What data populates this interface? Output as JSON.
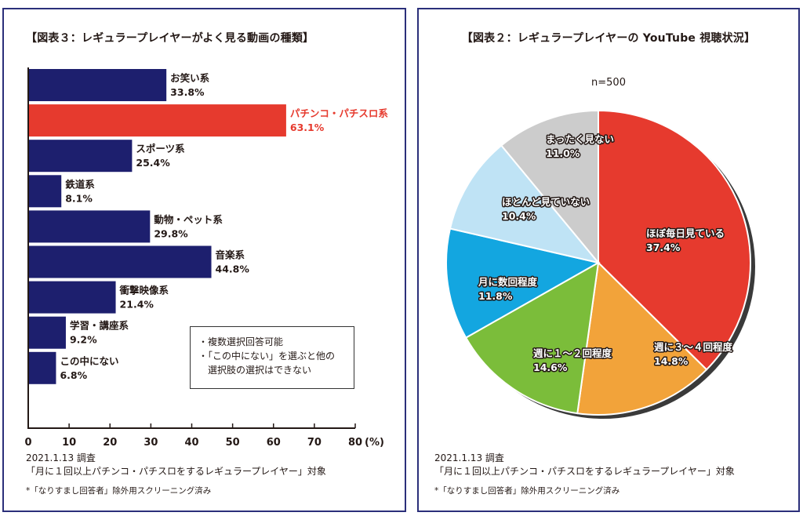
{
  "chart_data": [
    {
      "type": "bar",
      "orientation": "horizontal",
      "title": "【図表３：レギュラープレイヤーがよく見る動画の種類】",
      "categories": [
        "お笑い系",
        "パチンコ・パチスロ系",
        "スポーツ系",
        "鉄道系",
        "動物・ペット系",
        "音楽系",
        "衝撃映像系",
        "学習・講座系",
        "この中にない"
      ],
      "values": [
        33.8,
        63.1,
        25.4,
        8.1,
        29.8,
        44.8,
        21.4,
        9.2,
        6.8
      ],
      "value_labels": [
        "33.8%",
        "63.1%",
        "25.4%",
        "8.1%",
        "29.8%",
        "44.8%",
        "21.4%",
        "9.2%",
        "6.8%"
      ],
      "highlight_index": 1,
      "xlim": [
        0,
        80
      ],
      "xticks": [
        "0",
        "10",
        "20",
        "30",
        "40",
        "50",
        "60",
        "70",
        "80"
      ],
      "x_unit": "(%)",
      "bar_color": "#1d1f6e",
      "highlight_color": "#e63a2e",
      "notes": [
        "・複数選択回答可能",
        "・「この中にない」を選ぶと他の",
        "選択肢の選択はできない"
      ],
      "footer": {
        "date": "2021.1.13 調査",
        "target": "「月に１回以上パチンコ・パチスロをするレギュラープレイヤー」対象",
        "note": "*「なりすまし回答者」除外用スクリーニング済み"
      }
    },
    {
      "type": "pie",
      "title": "【図表２：レギュラープレイヤーの YouTube 視聴状況】",
      "sample": "n=500",
      "labels": [
        "ほぼ毎日見ている",
        "週に３～４回程度",
        "週に１～２回程度",
        "月に数回程度",
        "ほとんど見ていない",
        "まったく見ない"
      ],
      "values": [
        37.4,
        14.8,
        14.6,
        11.8,
        10.4,
        11.0
      ],
      "value_labels": [
        "37.4%",
        "14.8%",
        "14.6%",
        "11.8%",
        "10.4%",
        "11.0%"
      ],
      "colors": [
        "#e63a2e",
        "#f2a33a",
        "#7bbd3a",
        "#13a6e0",
        "#bfe3f5",
        "#cccccc"
      ],
      "footer": {
        "date": "2021.1.13 調査",
        "target": "「月に１回以上パチンコ・パチスロをするレギュラープレイヤー」対象",
        "note": "*「なりすまし回答者」除外用スクリーニング済み"
      }
    }
  ]
}
